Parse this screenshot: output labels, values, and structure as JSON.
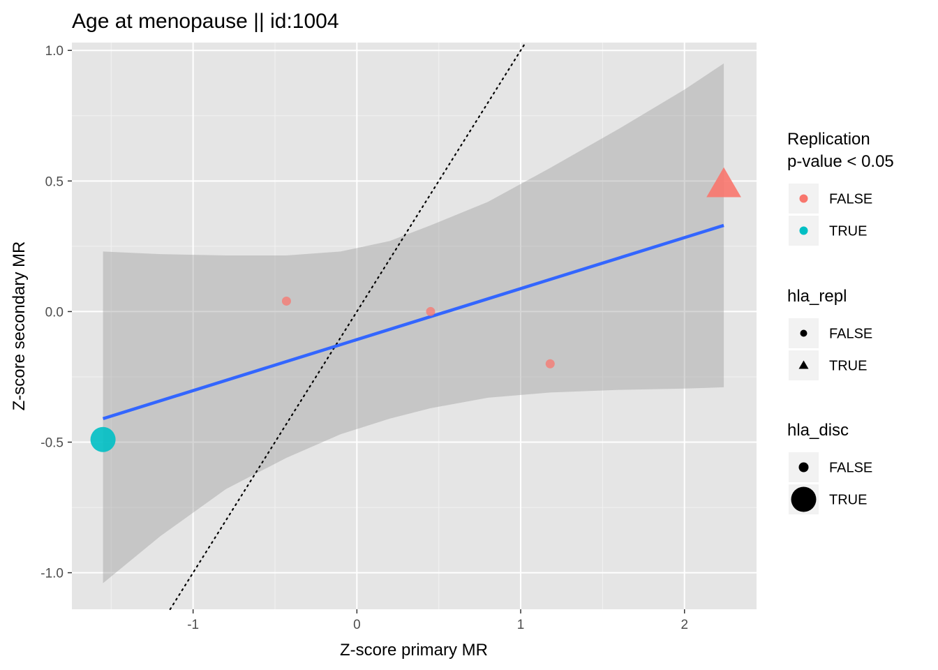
{
  "chart_data": {
    "type": "scatter",
    "title": "Age at menopause || id:1004",
    "xlabel": "Z-score primary MR",
    "ylabel": "Z-score secondary MR",
    "xlim": [
      -1.74,
      2.44
    ],
    "ylim": [
      -1.14,
      1.03
    ],
    "x_ticks": [
      -1,
      0,
      1,
      2
    ],
    "x_tick_labels": [
      "-1",
      "0",
      "1",
      "2"
    ],
    "y_ticks": [
      -1.0,
      -0.5,
      0.0,
      0.5,
      1.0
    ],
    "y_tick_labels": [
      "-1.0",
      "-0.5",
      "0.0",
      "0.5",
      "1.0"
    ],
    "grid": true,
    "panel_background": "#e5e5e5",
    "points": [
      {
        "x": -0.43,
        "y": 0.04,
        "replication": "FALSE",
        "hla_repl": "FALSE",
        "hla_disc": "FALSE"
      },
      {
        "x": 0.45,
        "y": 0.0,
        "replication": "FALSE",
        "hla_repl": "FALSE",
        "hla_disc": "FALSE"
      },
      {
        "x": 1.18,
        "y": -0.2,
        "replication": "FALSE",
        "hla_repl": "FALSE",
        "hla_disc": "FALSE"
      },
      {
        "x": 2.24,
        "y": 0.48,
        "replication": "FALSE",
        "hla_repl": "TRUE",
        "hla_disc": "FALSE"
      },
      {
        "x": -1.55,
        "y": -0.49,
        "replication": "TRUE",
        "hla_repl": "FALSE",
        "hla_disc": "TRUE"
      }
    ],
    "regression_line": {
      "color": "#3366ff",
      "x": [
        -1.55,
        2.24
      ],
      "y": [
        -0.41,
        0.33
      ]
    },
    "confidence_band": {
      "color": "#999999",
      "x": [
        -1.55,
        -1.2,
        -0.8,
        -0.43,
        -0.1,
        0.2,
        0.45,
        0.8,
        1.18,
        1.6,
        2.0,
        2.24
      ],
      "upper": [
        0.23,
        0.22,
        0.215,
        0.215,
        0.23,
        0.27,
        0.33,
        0.42,
        0.55,
        0.7,
        0.85,
        0.95
      ],
      "lower": [
        -1.04,
        -0.86,
        -0.68,
        -0.56,
        -0.47,
        -0.41,
        -0.37,
        -0.33,
        -0.31,
        -0.3,
        -0.295,
        -0.29
      ]
    },
    "identity_line": {
      "color": "#000000",
      "style": "dotted",
      "slope": 1,
      "intercept": 0
    },
    "colors": {
      "FALSE": "#f8766d",
      "TRUE": "#00bfc4"
    },
    "legends": [
      {
        "title_lines": [
          "Replication",
          "p-value < 0.05"
        ],
        "kind": "color",
        "items": [
          {
            "label": "FALSE",
            "color": "#f8766d"
          },
          {
            "label": "TRUE",
            "color": "#00bfc4"
          }
        ]
      },
      {
        "title_lines": [
          "hla_repl"
        ],
        "kind": "shape",
        "items": [
          {
            "label": "FALSE",
            "shape": "circle"
          },
          {
            "label": "TRUE",
            "shape": "triangle"
          }
        ]
      },
      {
        "title_lines": [
          "hla_disc"
        ],
        "kind": "size",
        "items": [
          {
            "label": "FALSE",
            "size": "small"
          },
          {
            "label": "TRUE",
            "size": "large"
          }
        ]
      }
    ]
  }
}
